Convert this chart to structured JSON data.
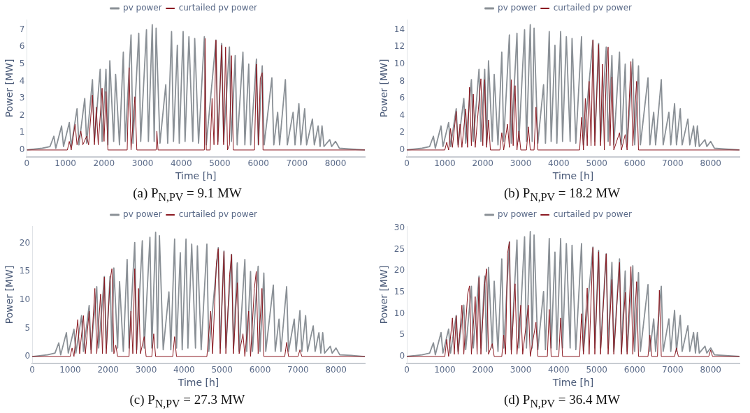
{
  "chart_data": [
    {
      "type": "line",
      "xlabel": "Time [h]",
      "ylabel": "Power [MW]",
      "xlim": [
        0,
        8760
      ],
      "xticks": [
        0,
        1000,
        2000,
        3000,
        4000,
        5000,
        6000,
        7000,
        8000
      ],
      "ylim": [
        -0.4,
        7.6
      ],
      "yticks": [
        0,
        1,
        2,
        3,
        4,
        5,
        6,
        7
      ],
      "grid": false,
      "legend": "top",
      "annotations": [
        "(a) P$_{N,PV}$ = 9.1 MW"
      ],
      "series": [
        {
          "name": "pv power",
          "color": "#8a9096",
          "x": [
            0,
            400,
            600,
            700,
            750,
            900,
            950,
            1100,
            1150,
            1300,
            1350,
            1500,
            1550,
            1700,
            1750,
            1900,
            1950,
            2050,
            2100,
            2150,
            2250,
            2300,
            2400,
            2500,
            2550,
            2700,
            2750,
            2900,
            2950,
            3100,
            3150,
            3250,
            3300,
            3350,
            3450,
            3600,
            3650,
            3750,
            3800,
            3900,
            3950,
            4050,
            4100,
            4200,
            4300,
            4350,
            4450,
            4600,
            4650,
            4900,
            4950,
            5050,
            5100,
            5250,
            5300,
            5400,
            5450,
            5600,
            5650,
            5750,
            5800,
            5950,
            6000,
            6100,
            6150,
            6350,
            6400,
            6500,
            6550,
            6700,
            6750,
            6900,
            6950,
            7050,
            7100,
            7200,
            7250,
            7400,
            7450,
            7550,
            7600,
            7650,
            7700,
            7850,
            7900,
            8000,
            8100,
            8400,
            8760
          ],
          "values": [
            0,
            0.1,
            0.2,
            0.8,
            0.1,
            1.4,
            0.2,
            1.6,
            0.2,
            2.4,
            0.3,
            3.0,
            0.4,
            4.1,
            0.5,
            4.7,
            0.5,
            4.7,
            0.3,
            5.2,
            0.5,
            4.4,
            0.3,
            5.7,
            0.5,
            6.7,
            0.4,
            6.8,
            0.5,
            7.0,
            0.5,
            7.3,
            0.5,
            7.1,
            0.4,
            3.8,
            0.4,
            6.9,
            0.5,
            6.1,
            0.4,
            6.9,
            0.5,
            6.6,
            0.5,
            6.5,
            0.4,
            6.6,
            0.3,
            6.4,
            0.5,
            6.2,
            0.5,
            6.0,
            0.5,
            5.5,
            0.3,
            5.7,
            0.3,
            5.0,
            0.3,
            5.3,
            0.3,
            4.9,
            0.3,
            4.2,
            0.3,
            2.2,
            0.3,
            4.1,
            0.3,
            2.2,
            0.3,
            2.7,
            0.3,
            2.4,
            0.3,
            1.8,
            0.3,
            1.4,
            0.2,
            1.4,
            0.2,
            0.6,
            0.2,
            0.5,
            0.1,
            0.05,
            0
          ]
        },
        {
          "name": "curtailed pv power",
          "color": "#8b1a22",
          "x": [
            0,
            1050,
            1100,
            1150,
            1250,
            1300,
            1400,
            1450,
            1550,
            1600,
            1700,
            1750,
            1800,
            1850,
            1950,
            2000,
            2050,
            2100,
            2600,
            2650,
            2700,
            2800,
            2850,
            3350,
            3370,
            3400,
            4600,
            4620,
            4650,
            4750,
            4800,
            4850,
            4900,
            4950,
            5050,
            5100,
            5150,
            5200,
            5250,
            5300,
            5350,
            5900,
            5950,
            6000,
            6050,
            6100,
            6120,
            8760
          ],
          "values": [
            0,
            0,
            0.5,
            0,
            1.5,
            0.3,
            1.1,
            0.3,
            0.8,
            0.3,
            3.2,
            0.3,
            2.5,
            0.3,
            3.6,
            0.5,
            3.4,
            0,
            0,
            4.8,
            0,
            3.1,
            0,
            0,
            1.1,
            0,
            0,
            6.5,
            0,
            0,
            3.0,
            0.3,
            6.4,
            0.3,
            6.1,
            0.3,
            6.0,
            0,
            0.3,
            5.5,
            0,
            0,
            5.0,
            0.3,
            4.2,
            4.5,
            0,
            0
          ]
        }
      ]
    },
    {
      "type": "line",
      "xlabel": "Time [h]",
      "ylabel": "Power [MW]",
      "xlim": [
        0,
        8760
      ],
      "xticks": [
        0,
        1000,
        2000,
        3000,
        4000,
        5000,
        6000,
        7000,
        8000
      ],
      "ylim": [
        -0.8,
        15.2
      ],
      "yticks": [
        0,
        2,
        4,
        6,
        8,
        10,
        12,
        14
      ],
      "grid": false,
      "legend": "top",
      "annotations": [
        "(b) P$_{N,PV}$ = 18.2 MW"
      ],
      "series": [
        {
          "name": "pv power",
          "color": "#8a9096",
          "x": [
            0,
            400,
            600,
            700,
            750,
            900,
            950,
            1100,
            1150,
            1300,
            1350,
            1500,
            1550,
            1700,
            1750,
            1900,
            1950,
            2050,
            2100,
            2150,
            2250,
            2300,
            2400,
            2500,
            2550,
            2700,
            2750,
            2900,
            2950,
            3100,
            3150,
            3250,
            3300,
            3350,
            3450,
            3600,
            3650,
            3750,
            3800,
            3900,
            3950,
            4050,
            4100,
            4200,
            4300,
            4350,
            4450,
            4600,
            4650,
            4900,
            4950,
            5050,
            5100,
            5250,
            5300,
            5400,
            5450,
            5600,
            5650,
            5750,
            5800,
            5950,
            6000,
            6100,
            6150,
            6350,
            6400,
            6500,
            6550,
            6700,
            6750,
            6900,
            6950,
            7050,
            7100,
            7200,
            7250,
            7400,
            7450,
            7550,
            7600,
            7650,
            7700,
            7850,
            7900,
            8000,
            8100,
            8400,
            8760
          ],
          "values": [
            0,
            0.2,
            0.4,
            1.6,
            0.2,
            2.8,
            0.4,
            3.2,
            0.4,
            4.8,
            0.6,
            6.0,
            0.8,
            8.2,
            1.0,
            9.4,
            1.0,
            9.4,
            0.6,
            10.4,
            1.0,
            8.8,
            0.6,
            11.4,
            1.0,
            13.4,
            0.8,
            13.6,
            1.0,
            14.0,
            1.0,
            14.6,
            1.0,
            14.2,
            0.8,
            7.6,
            0.8,
            13.8,
            1.0,
            12.2,
            0.8,
            13.8,
            1.0,
            13.2,
            1.0,
            13.0,
            0.8,
            13.2,
            0.6,
            12.8,
            1.0,
            12.4,
            1.0,
            12.0,
            1.0,
            11.0,
            0.6,
            11.4,
            0.6,
            10.0,
            0.6,
            10.6,
            0.6,
            9.8,
            0.6,
            8.4,
            0.6,
            4.4,
            0.6,
            8.2,
            0.6,
            4.4,
            0.6,
            5.4,
            0.6,
            4.8,
            0.6,
            3.6,
            0.6,
            2.8,
            0.4,
            2.8,
            0.4,
            1.2,
            0.4,
            1.0,
            0.2,
            0.1,
            0
          ]
        },
        {
          "name": "curtailed pv power",
          "color": "#8b1a22",
          "x": [
            0,
            1000,
            1050,
            1100,
            1150,
            1200,
            1300,
            1350,
            1400,
            1450,
            1550,
            1600,
            1650,
            1700,
            1750,
            1800,
            1950,
            2000,
            2050,
            2100,
            2150,
            2200,
            2450,
            2500,
            2550,
            2650,
            2700,
            2750,
            2800,
            2850,
            2900,
            2950,
            3000,
            3150,
            3200,
            3250,
            3350,
            3400,
            3450,
            4550,
            4600,
            4650,
            4700,
            4750,
            4800,
            4850,
            4900,
            4950,
            5050,
            5100,
            5150,
            5200,
            5250,
            5300,
            5350,
            5400,
            5450,
            5600,
            5650,
            5750,
            5800,
            5900,
            5950,
            6050,
            6100,
            8760
          ],
          "values": [
            0,
            0,
            0.9,
            0,
            2.5,
            0.3,
            4.5,
            0.3,
            3.0,
            0.3,
            4.8,
            0.3,
            7.3,
            0.5,
            6.5,
            0.3,
            8.3,
            0.5,
            8.2,
            0.3,
            3.5,
            0,
            0,
            2.0,
            0,
            3.0,
            0.3,
            8.2,
            0.5,
            7.5,
            0,
            2.2,
            0,
            0,
            2.7,
            0,
            0,
            5.0,
            0,
            0,
            3.8,
            0,
            6.0,
            0.5,
            8.0,
            0.5,
            12.8,
            0.5,
            12.3,
            0.5,
            10.0,
            0,
            9.0,
            12.0,
            0.5,
            8.5,
            0,
            2.0,
            0,
            1.8,
            0,
            10.3,
            0.5,
            8.0,
            0,
            0
          ]
        }
      ]
    },
    {
      "type": "line",
      "xlabel": "Time [h]",
      "ylabel": "Power [MW]",
      "xlim": [
        0,
        8760
      ],
      "xticks": [
        0,
        1000,
        2000,
        3000,
        4000,
        5000,
        6000,
        7000,
        8000
      ],
      "ylim": [
        -1.2,
        23
      ],
      "yticks": [
        0,
        5,
        10,
        15,
        20
      ],
      "grid": false,
      "legend": "top",
      "annotations": [
        "(c) P$_{N,PV}$ = 27.3 MW"
      ],
      "series": [
        {
          "name": "pv power",
          "color": "#8a9096",
          "x": [
            0,
            400,
            600,
            700,
            750,
            900,
            950,
            1100,
            1150,
            1300,
            1350,
            1500,
            1550,
            1700,
            1750,
            1900,
            1950,
            2050,
            2100,
            2150,
            2250,
            2300,
            2400,
            2500,
            2550,
            2700,
            2750,
            2900,
            2950,
            3100,
            3150,
            3250,
            3300,
            3350,
            3450,
            3600,
            3650,
            3750,
            3800,
            3900,
            3950,
            4050,
            4100,
            4200,
            4300,
            4350,
            4450,
            4600,
            4650,
            4900,
            4950,
            5050,
            5100,
            5250,
            5300,
            5400,
            5450,
            5600,
            5650,
            5750,
            5800,
            5950,
            6000,
            6100,
            6150,
            6350,
            6400,
            6500,
            6550,
            6700,
            6750,
            6900,
            6950,
            7050,
            7100,
            7200,
            7250,
            7400,
            7450,
            7550,
            7600,
            7650,
            7700,
            7850,
            7900,
            8000,
            8100,
            8400,
            8760
          ],
          "values": [
            0,
            0.3,
            0.6,
            2.4,
            0.3,
            4.2,
            0.6,
            4.8,
            0.6,
            7.2,
            0.9,
            9.0,
            1.2,
            12.3,
            1.5,
            14.1,
            1.5,
            14.1,
            0.9,
            15.6,
            1.5,
            13.2,
            0.9,
            17.1,
            1.5,
            20.1,
            1.2,
            20.4,
            1.5,
            21.0,
            1.5,
            21.9,
            1.5,
            21.3,
            1.2,
            11.4,
            1.2,
            20.7,
            1.5,
            18.3,
            1.2,
            20.7,
            1.5,
            19.8,
            1.5,
            19.5,
            1.2,
            19.8,
            0.9,
            19.2,
            1.5,
            18.6,
            1.5,
            18.0,
            1.5,
            16.5,
            0.9,
            17.1,
            0.9,
            15.0,
            0.9,
            15.9,
            0.9,
            14.7,
            0.9,
            12.6,
            0.9,
            6.6,
            0.9,
            12.3,
            0.9,
            6.6,
            0.9,
            8.1,
            0.9,
            7.2,
            0.9,
            5.4,
            0.9,
            4.2,
            0.6,
            4.2,
            0.6,
            1.8,
            0.6,
            1.5,
            0.3,
            0.2,
            0
          ]
        },
        {
          "name": "curtailed pv power",
          "color": "#8b1a22",
          "x": [
            0,
            1000,
            1050,
            1100,
            1200,
            1250,
            1350,
            1400,
            1500,
            1550,
            1650,
            1700,
            1800,
            1850,
            1900,
            1950,
            2050,
            2100,
            2150,
            2200,
            2250,
            2550,
            2600,
            2650,
            2700,
            2750,
            2800,
            2850,
            2950,
            3000,
            3150,
            3200,
            3250,
            3700,
            3750,
            3800,
            4600,
            4700,
            4750,
            4850,
            4900,
            4950,
            5050,
            5100,
            5200,
            5250,
            5300,
            5400,
            5450,
            5550,
            5600,
            5700,
            5750,
            5850,
            5900,
            5950,
            6050,
            6100,
            6650,
            6700,
            6750,
            7000,
            7050,
            7100,
            8760
          ],
          "values": [
            0,
            0,
            1.5,
            0,
            6.5,
            0.5,
            7.2,
            0.5,
            8.0,
            0.5,
            12.0,
            0.5,
            11.0,
            0.5,
            14.0,
            0.5,
            13.5,
            15.5,
            0.5,
            2.0,
            0,
            0,
            8.0,
            0.5,
            15.5,
            0.5,
            12.0,
            0.5,
            3.5,
            0,
            0,
            4.0,
            0,
            0,
            3.5,
            0,
            0,
            8.0,
            0.5,
            16.5,
            19.0,
            0.5,
            18.5,
            0.5,
            14.5,
            18.0,
            0.5,
            13.0,
            0.5,
            4.0,
            0,
            8.0,
            0,
            12.0,
            15.0,
            0.5,
            12.0,
            0,
            0,
            2.5,
            0,
            0,
            1.2,
            0,
            0
          ]
        }
      ]
    },
    {
      "type": "line",
      "xlabel": "Time [h]",
      "ylabel": "Power [MW]",
      "xlim": [
        0,
        8760
      ],
      "xticks": [
        0,
        1000,
        2000,
        3000,
        4000,
        5000,
        6000,
        7000,
        8000
      ],
      "ylim": [
        -1.6,
        30.5
      ],
      "yticks": [
        0,
        5,
        10,
        15,
        20,
        25,
        30
      ],
      "grid": false,
      "legend": "top",
      "annotations": [
        "(d) P$_{N,PV}$ = 36.4 MW"
      ],
      "series": [
        {
          "name": "pv power",
          "color": "#8a9096",
          "x": [
            0,
            400,
            600,
            700,
            750,
            900,
            950,
            1100,
            1150,
            1300,
            1350,
            1500,
            1550,
            1700,
            1750,
            1900,
            1950,
            2050,
            2100,
            2150,
            2250,
            2300,
            2400,
            2500,
            2550,
            2700,
            2750,
            2900,
            2950,
            3100,
            3150,
            3250,
            3300,
            3350,
            3450,
            3600,
            3650,
            3750,
            3800,
            3900,
            3950,
            4050,
            4100,
            4200,
            4300,
            4350,
            4450,
            4600,
            4650,
            4900,
            4950,
            5050,
            5100,
            5250,
            5300,
            5400,
            5450,
            5600,
            5650,
            5750,
            5800,
            5950,
            6000,
            6100,
            6150,
            6350,
            6400,
            6500,
            6550,
            6700,
            6750,
            6900,
            6950,
            7050,
            7100,
            7200,
            7250,
            7400,
            7450,
            7550,
            7600,
            7650,
            7700,
            7850,
            7900,
            8000,
            8100,
            8400,
            8760
          ],
          "values": [
            0,
            0.4,
            0.8,
            3.2,
            0.4,
            5.6,
            0.8,
            6.4,
            0.8,
            9.6,
            1.2,
            12.0,
            1.6,
            16.4,
            2.0,
            18.8,
            2.0,
            18.8,
            1.2,
            20.8,
            2.0,
            17.6,
            1.2,
            22.8,
            2.0,
            26.8,
            1.6,
            27.2,
            2.0,
            28.0,
            2.0,
            29.2,
            2.0,
            28.4,
            1.6,
            15.2,
            1.6,
            27.6,
            2.0,
            24.4,
            1.6,
            27.6,
            2.0,
            26.4,
            2.0,
            26.0,
            1.6,
            26.4,
            1.2,
            25.6,
            2.0,
            24.8,
            2.0,
            24.0,
            2.0,
            22.0,
            1.2,
            22.8,
            1.2,
            20.0,
            1.2,
            21.2,
            1.2,
            19.6,
            1.2,
            16.8,
            1.2,
            8.8,
            1.2,
            16.4,
            1.2,
            8.8,
            1.2,
            10.8,
            1.2,
            9.6,
            1.2,
            7.2,
            1.2,
            5.6,
            0.8,
            5.6,
            0.8,
            2.4,
            0.8,
            2.0,
            0.4,
            0.2,
            0
          ]
        },
        {
          "name": "curtailed pv power",
          "color": "#8b1a22",
          "x": [
            0,
            1000,
            1050,
            1100,
            1200,
            1250,
            1300,
            1350,
            1450,
            1500,
            1600,
            1650,
            1700,
            1800,
            1850,
            1900,
            1950,
            2050,
            2100,
            2150,
            2250,
            2300,
            2500,
            2550,
            2600,
            2650,
            2700,
            2750,
            2850,
            2900,
            3000,
            3050,
            3200,
            3250,
            3400,
            3450,
            3700,
            3750,
            3800,
            4000,
            4050,
            4100,
            4550,
            4600,
            4650,
            4750,
            4800,
            4900,
            4950,
            5050,
            5100,
            5250,
            5300,
            5400,
            5450,
            5600,
            5650,
            5750,
            5800,
            5900,
            5950,
            6050,
            6100,
            6350,
            6400,
            6450,
            6600,
            6650,
            6700,
            7050,
            7100,
            7150,
            7950,
            8000,
            8050,
            8760
          ],
          "values": [
            0,
            0,
            4.0,
            0,
            9.0,
            0.5,
            9.5,
            0.5,
            12.0,
            0.5,
            14.5,
            16.5,
            0.5,
            14.0,
            0.5,
            18.5,
            0.5,
            17.0,
            20.5,
            0.5,
            3.0,
            0,
            0,
            5.0,
            0.5,
            24.0,
            26.8,
            0.5,
            17.0,
            0.5,
            12.0,
            0.5,
            12.0,
            0,
            8.0,
            0,
            0,
            11.0,
            0,
            0,
            9.0,
            0,
            0,
            10.0,
            0.5,
            16.0,
            0.5,
            25.5,
            0.5,
            24.5,
            0.5,
            24.0,
            0.5,
            18.0,
            0.5,
            22.0,
            0.5,
            15.0,
            0.5,
            21.0,
            0.5,
            17.5,
            0,
            0,
            5.0,
            0,
            0,
            15.5,
            0,
            0,
            2.0,
            0,
            0,
            1.5,
            0,
            0
          ]
        }
      ]
    }
  ]
}
